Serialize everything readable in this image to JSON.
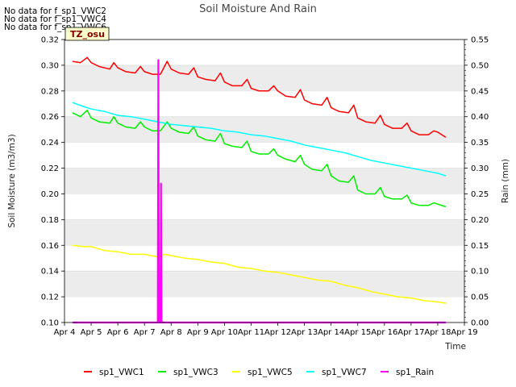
{
  "notices": [
    "No data for f_sp1_VWC2",
    "No data for f_sp1_VWC4",
    "No data for f_sp1_VWC6"
  ],
  "tz_label": "TZ_osu",
  "chart_data": {
    "type": "line",
    "title": "Soil Moisture And Rain",
    "xlabel": "Time",
    "ylabel": "Soil Moisture (m3/m3)",
    "y2label": "Rain (mm)",
    "xlim": [
      4,
      19
    ],
    "ylim": [
      0.1,
      0.32
    ],
    "y2lim": [
      0.0,
      0.55
    ],
    "x_ticks": [
      4,
      5,
      6,
      7,
      8,
      9,
      10,
      11,
      12,
      13,
      14,
      15,
      16,
      17,
      18,
      19
    ],
    "x_tick_labels": [
      "Apr 4",
      "Apr 5",
      "Apr 6",
      "Apr 7",
      "Apr 8",
      "Apr 9",
      "Apr 10",
      "Apr 11",
      "Apr 12",
      "Apr 13",
      "Apr 14",
      "Apr 15",
      "Apr 16",
      "Apr 17",
      "Apr 18",
      "Apr 19"
    ],
    "y_ticks": [
      0.1,
      0.12,
      0.14,
      0.16,
      0.18,
      0.2,
      0.22,
      0.24,
      0.26,
      0.28,
      0.3,
      0.32
    ],
    "y_tick_labels": [
      "0.10",
      "0.12",
      "0.14",
      "0.16",
      "0.18",
      "0.20",
      "0.22",
      "0.24",
      "0.26",
      "0.28",
      "0.30",
      "0.32"
    ],
    "y2_ticks": [
      0.0,
      0.05,
      0.1,
      0.15,
      0.2,
      0.25,
      0.3,
      0.35,
      0.4,
      0.45,
      0.5,
      0.55
    ],
    "y2_tick_labels": [
      "0.00",
      "0.05",
      "0.10",
      "0.15",
      "0.20",
      "0.25",
      "0.30",
      "0.35",
      "0.40",
      "0.45",
      "0.50",
      "0.55"
    ],
    "series": [
      {
        "name": "sp1_VWC1",
        "color": "#ff0000",
        "axis": "left",
        "x": [
          4.3,
          4.6,
          4.85,
          5.0,
          5.3,
          5.7,
          5.85,
          6.0,
          6.3,
          6.65,
          6.85,
          7.0,
          7.3,
          7.6,
          7.85,
          8.0,
          8.3,
          8.65,
          8.85,
          9.0,
          9.3,
          9.65,
          9.85,
          10.0,
          10.3,
          10.65,
          10.85,
          11.0,
          11.3,
          11.65,
          11.85,
          12.0,
          12.3,
          12.65,
          12.85,
          13.0,
          13.3,
          13.65,
          13.85,
          14.0,
          14.3,
          14.65,
          14.85,
          15.0,
          15.3,
          15.65,
          15.85,
          16.0,
          16.3,
          16.65,
          16.85,
          17.0,
          17.3,
          17.65,
          17.85,
          18.0,
          18.3
        ],
        "y": [
          0.303,
          0.302,
          0.306,
          0.302,
          0.299,
          0.297,
          0.302,
          0.298,
          0.295,
          0.294,
          0.299,
          0.295,
          0.293,
          0.293,
          0.303,
          0.297,
          0.294,
          0.293,
          0.298,
          0.291,
          0.289,
          0.288,
          0.294,
          0.287,
          0.284,
          0.284,
          0.289,
          0.282,
          0.28,
          0.28,
          0.284,
          0.28,
          0.276,
          0.275,
          0.281,
          0.273,
          0.27,
          0.269,
          0.275,
          0.267,
          0.264,
          0.263,
          0.269,
          0.259,
          0.256,
          0.255,
          0.261,
          0.254,
          0.251,
          0.251,
          0.255,
          0.249,
          0.246,
          0.246,
          0.249,
          0.248,
          0.244
        ]
      },
      {
        "name": "sp1_VWC3",
        "color": "#00ee00",
        "axis": "left",
        "x": [
          4.3,
          4.6,
          4.85,
          5.0,
          5.3,
          5.7,
          5.85,
          6.0,
          6.3,
          6.65,
          6.85,
          7.0,
          7.3,
          7.6,
          7.85,
          8.0,
          8.3,
          8.65,
          8.85,
          9.0,
          9.3,
          9.65,
          9.85,
          10.0,
          10.3,
          10.65,
          10.85,
          11.0,
          11.3,
          11.65,
          11.85,
          12.0,
          12.3,
          12.65,
          12.85,
          13.0,
          13.3,
          13.65,
          13.85,
          14.0,
          14.3,
          14.65,
          14.85,
          15.0,
          15.3,
          15.65,
          15.85,
          16.0,
          16.3,
          16.65,
          16.85,
          17.0,
          17.3,
          17.65,
          17.85,
          18.0,
          18.3
        ],
        "y": [
          0.263,
          0.26,
          0.265,
          0.259,
          0.256,
          0.255,
          0.26,
          0.255,
          0.252,
          0.251,
          0.256,
          0.252,
          0.249,
          0.249,
          0.256,
          0.251,
          0.248,
          0.247,
          0.252,
          0.245,
          0.242,
          0.241,
          0.247,
          0.239,
          0.237,
          0.236,
          0.241,
          0.233,
          0.231,
          0.231,
          0.235,
          0.23,
          0.227,
          0.225,
          0.23,
          0.223,
          0.219,
          0.218,
          0.223,
          0.214,
          0.21,
          0.209,
          0.214,
          0.203,
          0.2,
          0.2,
          0.205,
          0.198,
          0.196,
          0.196,
          0.199,
          0.193,
          0.191,
          0.191,
          0.193,
          0.192,
          0.19
        ]
      },
      {
        "name": "sp1_VWC5",
        "color": "#ffff00",
        "axis": "left",
        "x": [
          4.3,
          4.7,
          5.0,
          5.5,
          6.0,
          6.5,
          7.0,
          7.5,
          7.75,
          8.0,
          8.5,
          9.0,
          9.5,
          10.0,
          10.5,
          11.0,
          11.5,
          12.0,
          12.5,
          13.0,
          13.5,
          14.0,
          14.5,
          15.0,
          15.5,
          16.0,
          16.5,
          17.0,
          17.5,
          18.0,
          18.3
        ],
        "y": [
          0.16,
          0.159,
          0.159,
          0.156,
          0.155,
          0.153,
          0.153,
          0.151,
          0.153,
          0.152,
          0.15,
          0.149,
          0.147,
          0.146,
          0.143,
          0.142,
          0.14,
          0.139,
          0.137,
          0.135,
          0.133,
          0.132,
          0.129,
          0.127,
          0.124,
          0.122,
          0.12,
          0.119,
          0.117,
          0.116,
          0.115
        ]
      },
      {
        "name": "sp1_VWC7",
        "color": "#00ffff",
        "axis": "left",
        "x": [
          4.3,
          4.7,
          5.0,
          5.5,
          6.0,
          6.5,
          7.0,
          7.5,
          8.0,
          8.5,
          9.0,
          9.5,
          10.0,
          10.5,
          11.0,
          11.5,
          12.0,
          12.5,
          13.0,
          13.5,
          14.0,
          14.5,
          15.0,
          15.5,
          16.0,
          16.5,
          17.0,
          17.5,
          18.0,
          18.3
        ],
        "y": [
          0.271,
          0.268,
          0.266,
          0.264,
          0.261,
          0.26,
          0.258,
          0.256,
          0.254,
          0.253,
          0.252,
          0.251,
          0.249,
          0.248,
          0.246,
          0.245,
          0.243,
          0.241,
          0.238,
          0.236,
          0.234,
          0.232,
          0.229,
          0.226,
          0.224,
          0.222,
          0.22,
          0.218,
          0.216,
          0.214
        ]
      },
      {
        "name": "sp1_Rain",
        "color": "#ff00ff",
        "axis": "right",
        "x": [
          4.3,
          7.5,
          7.52,
          7.54,
          7.56,
          7.6,
          7.62,
          7.64,
          7.66,
          7.7,
          18.3
        ],
        "y": [
          0.0,
          0.0,
          0.51,
          0.0,
          0.0,
          0.0,
          0.27,
          0.0,
          0.0,
          0.0,
          0.0
        ]
      }
    ]
  }
}
